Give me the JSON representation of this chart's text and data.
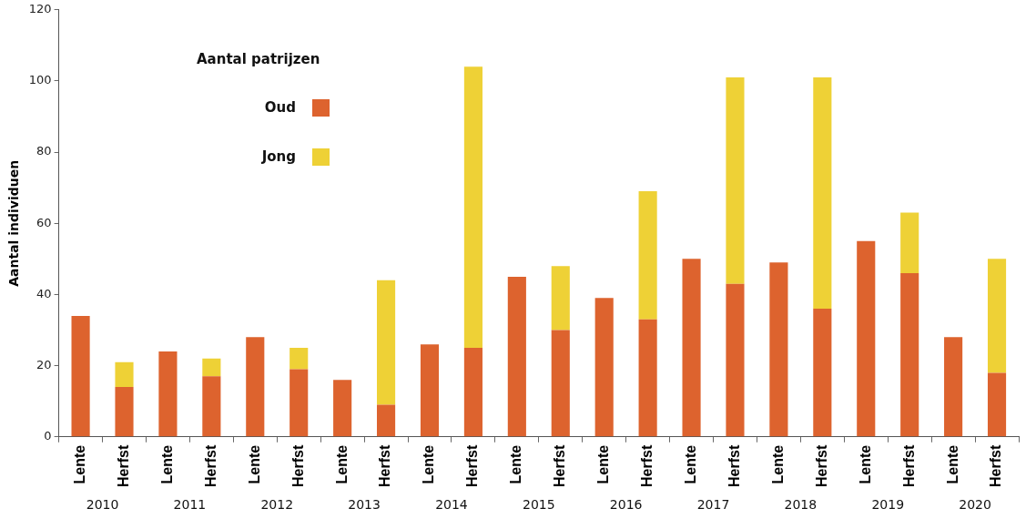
{
  "chart_data": {
    "type": "bar",
    "stacked": true,
    "ylabel": "Aantal individuen",
    "legend_title": "Aantal patrijzen",
    "legend": "top left",
    "grid": false,
    "categories": [
      "Lente",
      "Herfst",
      "Lente",
      "Herfst",
      "Lente",
      "Herfst",
      "Lente",
      "Herfst",
      "Lente",
      "Herfst",
      "Lente",
      "Herfst",
      "Lente",
      "Herfst",
      "Lente",
      "Herfst",
      "Lente",
      "Herfst",
      "Lente",
      "Herfst",
      "Lente",
      "Herfst"
    ],
    "annotations": [
      "2010",
      "2011",
      "2012",
      "2013",
      "2014",
      "2015",
      "2016",
      "2017",
      "2018",
      "2019",
      "2020"
    ],
    "ylim": [
      0,
      120
    ],
    "yticks": [
      0,
      20,
      40,
      60,
      80,
      100,
      120
    ],
    "series": [
      {
        "name": "Oud",
        "color": "#dd632e",
        "values": [
          34,
          14,
          24,
          17,
          28,
          19,
          16,
          9,
          26,
          25,
          45,
          30,
          39,
          33,
          50,
          43,
          49,
          36,
          55,
          46,
          28,
          18
        ]
      },
      {
        "name": "Jong",
        "color": "#eed136",
        "values": [
          null,
          7,
          null,
          5,
          null,
          6,
          null,
          35,
          null,
          79,
          null,
          18,
          null,
          36,
          null,
          58,
          null,
          65,
          null,
          17,
          null,
          32
        ]
      }
    ]
  }
}
